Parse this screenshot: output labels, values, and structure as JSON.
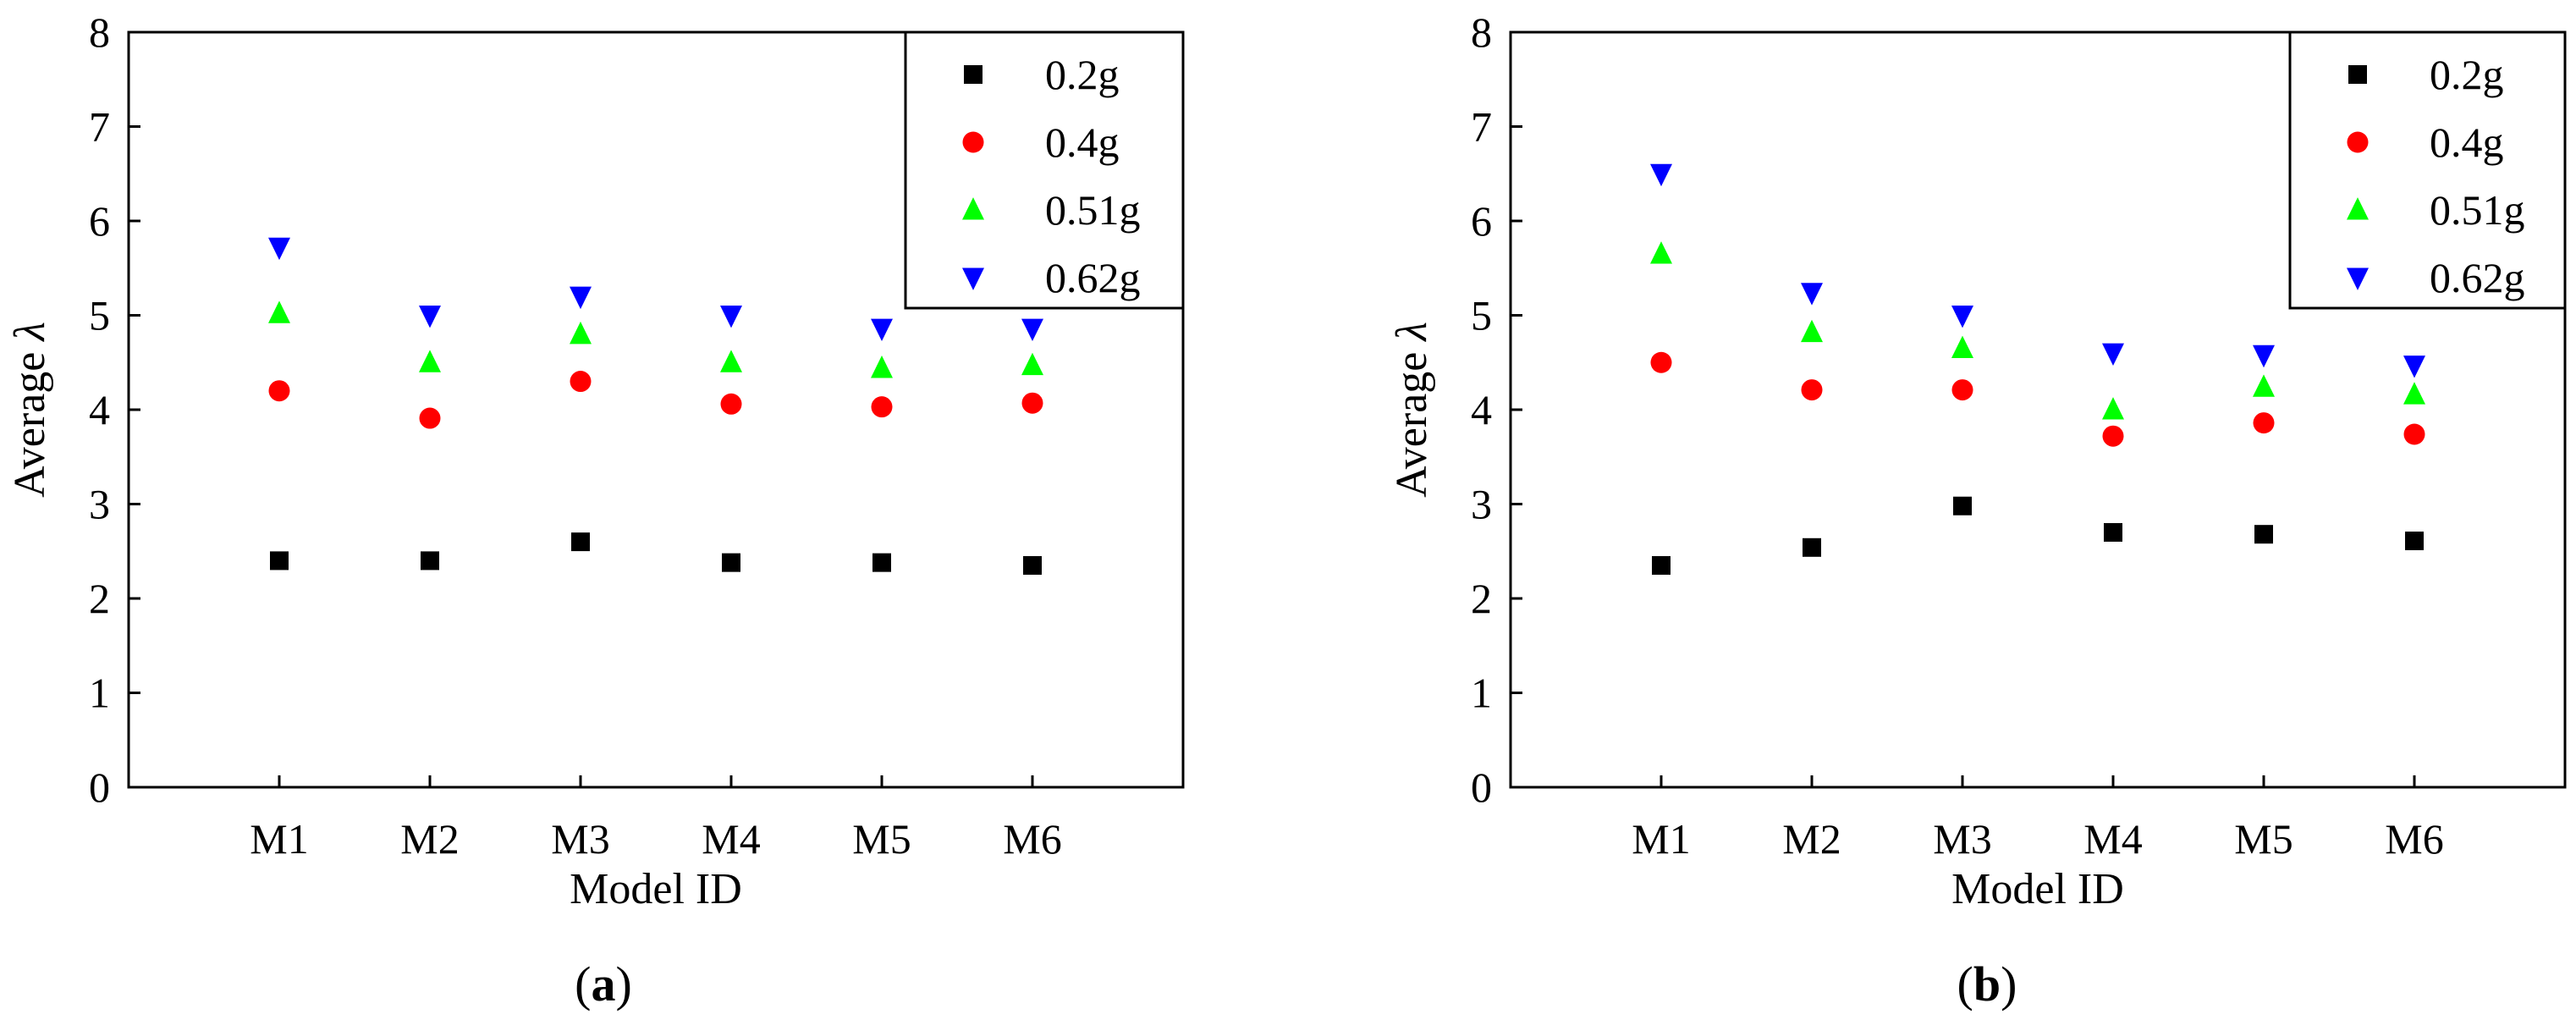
{
  "figure": {
    "panels": [
      {
        "open_paren": "(",
        "letter": "a",
        "close_paren": ")"
      },
      {
        "open_paren": "(",
        "letter": "b",
        "close_paren": ")"
      }
    ]
  },
  "chart_data": [
    {
      "type": "scatter",
      "panel_label": "(a)",
      "title": "",
      "xlabel": "Model ID",
      "ylabel": "Average λ",
      "ylabel_prefix": "Average ",
      "ylabel_symbol": "λ",
      "categories": [
        "M1",
        "M2",
        "M3",
        "M4",
        "M5",
        "M6"
      ],
      "xlim": [
        0,
        7
      ],
      "ylim": [
        0,
        8
      ],
      "yticks": [
        0,
        1,
        2,
        3,
        4,
        5,
        6,
        7,
        8
      ],
      "grid": false,
      "legend_position": "top-right",
      "series": [
        {
          "name": "0.2g",
          "marker": "square",
          "color": "#000000",
          "values": [
            2.4,
            2.4,
            2.6,
            2.38,
            2.38,
            2.35
          ]
        },
        {
          "name": "0.4g",
          "marker": "circle",
          "color": "#ff0000",
          "values": [
            4.2,
            3.91,
            4.3,
            4.06,
            4.03,
            4.07
          ]
        },
        {
          "name": "0.51g",
          "marker": "triangle-up",
          "color": "#00ff00",
          "values": [
            5.02,
            4.5,
            4.8,
            4.5,
            4.44,
            4.47
          ]
        },
        {
          "name": "0.62g",
          "marker": "triangle-down",
          "color": "#0000ff",
          "values": [
            5.72,
            5.0,
            5.2,
            5.0,
            4.86,
            4.86
          ]
        }
      ]
    },
    {
      "type": "scatter",
      "panel_label": "(b)",
      "title": "",
      "xlabel": "Model ID",
      "ylabel": "Average λ",
      "ylabel_prefix": "Average ",
      "ylabel_symbol": "λ",
      "categories": [
        "M1",
        "M2",
        "M3",
        "M4",
        "M5",
        "M6"
      ],
      "xlim": [
        0,
        7
      ],
      "ylim": [
        0,
        8
      ],
      "yticks": [
        0,
        1,
        2,
        3,
        4,
        5,
        6,
        7,
        8
      ],
      "grid": false,
      "legend_position": "top-right",
      "series": [
        {
          "name": "0.2g",
          "marker": "square",
          "color": "#000000",
          "values": [
            2.35,
            2.54,
            2.98,
            2.7,
            2.68,
            2.61
          ]
        },
        {
          "name": "0.4g",
          "marker": "circle",
          "color": "#ff0000",
          "values": [
            4.5,
            4.21,
            4.21,
            3.72,
            3.86,
            3.74
          ]
        },
        {
          "name": "0.51g",
          "marker": "triangle-up",
          "color": "#00ff00",
          "values": [
            5.65,
            4.82,
            4.65,
            4.0,
            4.24,
            4.16
          ]
        },
        {
          "name": "0.62g",
          "marker": "triangle-down",
          "color": "#0000ff",
          "values": [
            6.5,
            5.24,
            5.0,
            4.6,
            4.58,
            4.47
          ]
        }
      ]
    }
  ]
}
